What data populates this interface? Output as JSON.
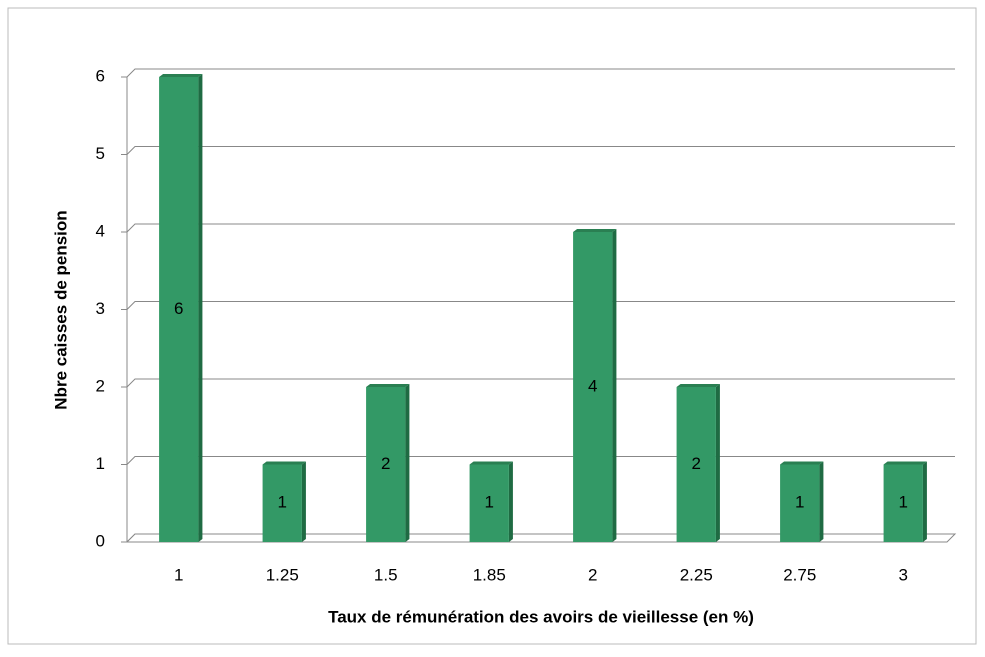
{
  "chart_data": {
    "type": "bar",
    "x_label": "Taux de rémunération des avoirs de vieillesse (en %)",
    "y_label": "Nbre caisses de pension",
    "categories": [
      "1",
      "1.25",
      "1.5",
      "1.85",
      "2",
      "2.25",
      "2.75",
      "3"
    ],
    "values": [
      6,
      1,
      2,
      1,
      4,
      2,
      1,
      1
    ],
    "color": "#339966",
    "ylim": [
      0,
      6
    ],
    "yticks": [
      0,
      1,
      2,
      3,
      4,
      5,
      6
    ],
    "grid": true
  }
}
